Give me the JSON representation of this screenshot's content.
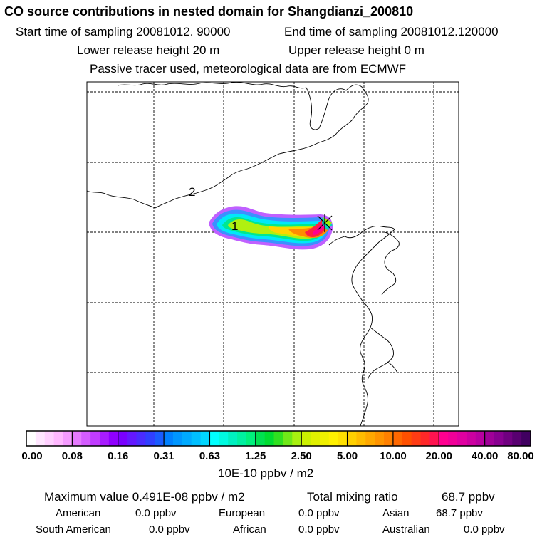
{
  "header": {
    "title": "CO  source contributions in nested domain for Shangdianzi_200810",
    "start_label": "Start time of sampling 20081012. 90000",
    "end_label": "End time of sampling 20081012.120000",
    "lower_label": "Lower release height   20 m",
    "upper_label": "Upper release height    0 m",
    "tracer_label": "Passive tracer used, meteorological data are from ECMWF"
  },
  "chart_data": {
    "type": "heatmap",
    "title": "CO  source contributions in nested domain for Shangdianzi_200810",
    "map_labels": [
      "2",
      "1"
    ],
    "colorbar": {
      "ticks": [
        "0.00",
        "0.08",
        "0.16",
        "0.31",
        "0.63",
        "1.25",
        "2.50",
        "5.00",
        "10.00",
        "20.00",
        "40.00",
        "80.00"
      ],
      "unit_label": "10E-10 ppbv / m2",
      "colors": [
        [
          "#ffffff",
          "#ffe6ff",
          "#ffd0ff",
          "#ffb8ff",
          "#f59bff"
        ],
        [
          "#e67aff",
          "#d45cff",
          "#c03cff",
          "#a81cff",
          "#9000ff"
        ],
        [
          "#7a00ff",
          "#6418ff",
          "#4a2cff",
          "#3040ff",
          "#1a5cff"
        ],
        [
          "#0080ff",
          "#0096ff",
          "#00aaff",
          "#00bfff",
          "#00d6ff"
        ],
        [
          "#00ffff",
          "#00fae0",
          "#00f0c0",
          "#00f0a0",
          "#00f07c"
        ],
        [
          "#00e050",
          "#00dc30",
          "#30e020",
          "#70e818",
          "#a8f010"
        ],
        [
          "#ccf000",
          "#e0f000",
          "#f0f000",
          "#fff000",
          "#ffe000"
        ],
        [
          "#ffd000",
          "#ffbc00",
          "#ffa800",
          "#ff9400",
          "#ff8000"
        ],
        [
          "#ff6800",
          "#ff5000",
          "#ff3c14",
          "#ff2828",
          "#ff1450"
        ],
        [
          "#ff0090",
          "#f00098",
          "#e000a0",
          "#cc00a0",
          "#b800a0"
        ],
        [
          "#a00098",
          "#880090",
          "#700080",
          "#580070",
          "#400060"
        ]
      ]
    },
    "source_marker_value": "maximum at receptor"
  },
  "footer": {
    "max_label": "Maximum value  0.491E-08 ppbv / m2",
    "total_label": "Total mixing ratio",
    "total_value": "68.7 ppbv",
    "regions": [
      {
        "name": "American",
        "value": "0.0 ppbv"
      },
      {
        "name": "European",
        "value": "0.0 ppbv"
      },
      {
        "name": "Asian",
        "value": "68.7 ppbv"
      },
      {
        "name": "South American",
        "value": "0.0 ppbv"
      },
      {
        "name": "African",
        "value": "0.0 ppbv"
      },
      {
        "name": "Australian",
        "value": "0.0 ppbv"
      }
    ]
  }
}
